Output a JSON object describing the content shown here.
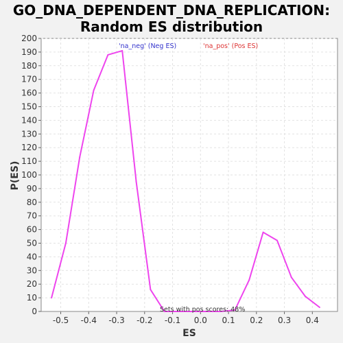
{
  "chart_data": {
    "type": "line",
    "title": "GO_DNA_DEPENDENT_DNA_REPLICATION:",
    "subtitle": "Random ES distribution",
    "xlabel": "ES",
    "ylabel": "P(ES)",
    "xlim": [
      -0.57,
      0.49
    ],
    "ylim": [
      0,
      200
    ],
    "xticks": [
      -0.5,
      -0.4,
      -0.3,
      -0.2,
      -0.1,
      0.0,
      0.1,
      0.2,
      0.3,
      0.4
    ],
    "xtick_labels": [
      "-0.5",
      "-0.4",
      "-0.3",
      "-0.2",
      "-0.1",
      "0.0",
      "0.1",
      "0.2",
      "0.3",
      "0.4"
    ],
    "yticks": [
      0,
      10,
      20,
      30,
      40,
      50,
      60,
      70,
      80,
      90,
      100,
      110,
      120,
      130,
      140,
      150,
      160,
      170,
      180,
      190,
      200
    ],
    "ytick_labels": [
      "0",
      "10",
      "20",
      "30",
      "40",
      "50",
      "60",
      "70",
      "80",
      "90",
      "100",
      "110",
      "120",
      "130",
      "140",
      "150",
      "160",
      "170",
      "180",
      "190",
      "200"
    ],
    "grid": true,
    "legend": [
      {
        "label": "'na_neg' (Neg ES)",
        "color": "#3333cc"
      },
      {
        "label": "'na_pos' (Pos ES)",
        "color": "#dd3333"
      }
    ],
    "series": [
      {
        "color": "#ee44ee",
        "x": [
          -0.533,
          -0.482,
          -0.432,
          -0.382,
          -0.331,
          -0.28,
          -0.23,
          -0.179,
          -0.129,
          -0.079,
          -0.028,
          0.022,
          0.073,
          0.123,
          0.174,
          0.224,
          0.274,
          0.325,
          0.375,
          0.426
        ],
        "y": [
          10,
          50,
          113,
          162,
          188,
          191,
          95,
          16,
          0,
          0,
          0,
          0,
          0,
          1,
          23,
          58,
          52,
          25,
          11,
          3
        ]
      }
    ],
    "annotation": "Sets with pos scores: 48%"
  }
}
